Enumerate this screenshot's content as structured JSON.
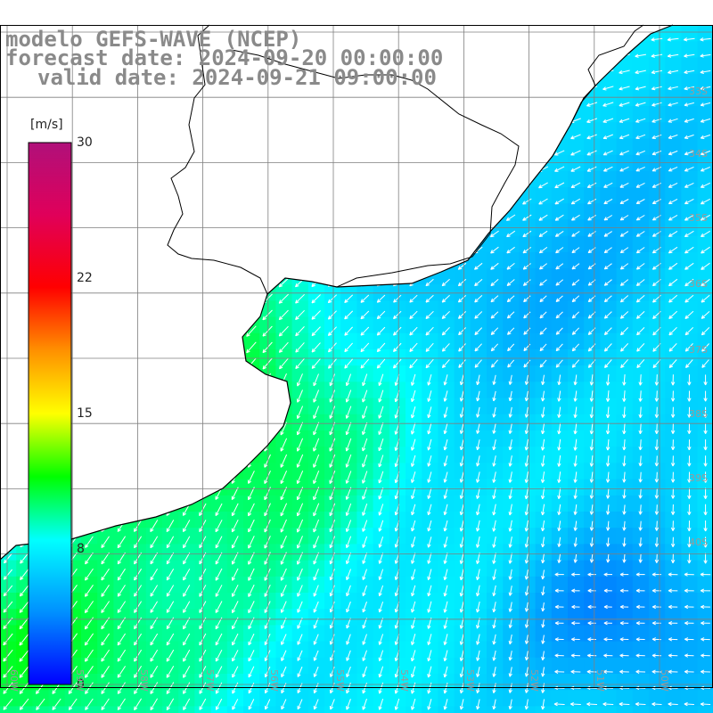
{
  "title": {
    "line1": "modelo GEFS-WAVE (NCEP)",
    "line2": "forecast date: 2024-09-20 00:00:00",
    "line3": "valid date: 2024-09-21 09:00:00"
  },
  "colorbar": {
    "unit": "[m/s]",
    "ticks": [
      "30",
      "22",
      "15",
      "8",
      "0"
    ],
    "tick_values": [
      30,
      22,
      15,
      8,
      0
    ],
    "min": 0,
    "max": 30,
    "stops": [
      {
        "v": 0,
        "c": "#0000ff"
      },
      {
        "v": 4,
        "c": "#0090ff"
      },
      {
        "v": 8,
        "c": "#00ffff"
      },
      {
        "v": 11.5,
        "c": "#00ff00"
      },
      {
        "v": 15,
        "c": "#ffff00"
      },
      {
        "v": 18.5,
        "c": "#ff9000"
      },
      {
        "v": 22,
        "c": "#ff0000"
      },
      {
        "v": 26,
        "c": "#e0005a"
      },
      {
        "v": 30,
        "c": "#b0107a"
      }
    ]
  },
  "lat_labels": [
    "33S",
    "34S",
    "35S",
    "36S",
    "37S",
    "38S",
    "39S",
    "40S"
  ],
  "lon_labels": [
    "60W",
    "59W",
    "58W",
    "57W",
    "56W",
    "55W",
    "54W",
    "53W",
    "52W",
    "51W",
    "50W"
  ],
  "colors": {
    "land": "#ffffff",
    "grid": "#7f7f7f",
    "coast": "#000000",
    "arrow": "#ffffff",
    "title": "#8a8a8a"
  },
  "layer": "wind speed and direction"
}
